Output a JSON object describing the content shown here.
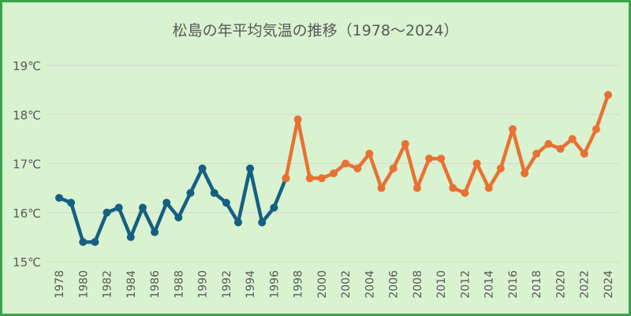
{
  "chart_data": {
    "type": "line",
    "title": "松島の年平均気温の推移（1978～2024）",
    "xlabel": "",
    "ylabel": "",
    "ylim": [
      15,
      19
    ],
    "y_ticks": [
      "15℃",
      "16℃",
      "17℃",
      "18℃",
      "19℃"
    ],
    "y_tick_values": [
      15,
      16,
      17,
      18,
      19
    ],
    "x_ticks": [
      "1978",
      "1980",
      "1982",
      "1984",
      "1986",
      "1988",
      "1990",
      "1992",
      "1994",
      "1996",
      "1998",
      "2000",
      "2002",
      "2004",
      "2006",
      "2008",
      "2010",
      "2012",
      "2014",
      "2016",
      "2018",
      "2020",
      "2022",
      "2024"
    ],
    "grid": true,
    "legend": "none",
    "colors": {
      "background": "#d9f2d0",
      "border": "#3aa34a",
      "grid": "#d9d9d9",
      "series_early": "#156082",
      "series_late": "#e97132"
    },
    "series": [
      {
        "color": "#156082",
        "x": [
          1978,
          1979,
          1980,
          1981,
          1982,
          1983,
          1984,
          1985,
          1986,
          1987,
          1988,
          1989,
          1990,
          1991,
          1992,
          1993,
          1994,
          1995,
          1996,
          1997
        ],
        "values": [
          16.3,
          16.2,
          15.4,
          15.4,
          16.0,
          16.1,
          15.5,
          16.1,
          15.6,
          16.2,
          15.9,
          16.4,
          16.9,
          16.4,
          16.2,
          15.8,
          16.9,
          15.8,
          16.1,
          16.7
        ]
      },
      {
        "color": "#e97132",
        "x": [
          1997,
          1998,
          1999,
          2000,
          2001,
          2002,
          2003,
          2004,
          2005,
          2006,
          2007,
          2008,
          2009,
          2010,
          2011,
          2012,
          2013,
          2014,
          2015,
          2016,
          2017,
          2018,
          2019,
          2020,
          2021,
          2022,
          2023,
          2024
        ],
        "values": [
          16.7,
          17.9,
          16.7,
          16.7,
          16.8,
          17.0,
          16.9,
          17.2,
          16.5,
          16.9,
          17.4,
          16.5,
          17.1,
          17.1,
          16.5,
          16.4,
          17.0,
          16.5,
          16.9,
          17.7,
          16.8,
          17.2,
          17.4,
          17.3,
          17.5,
          17.2,
          17.7,
          18.4
        ]
      }
    ]
  }
}
